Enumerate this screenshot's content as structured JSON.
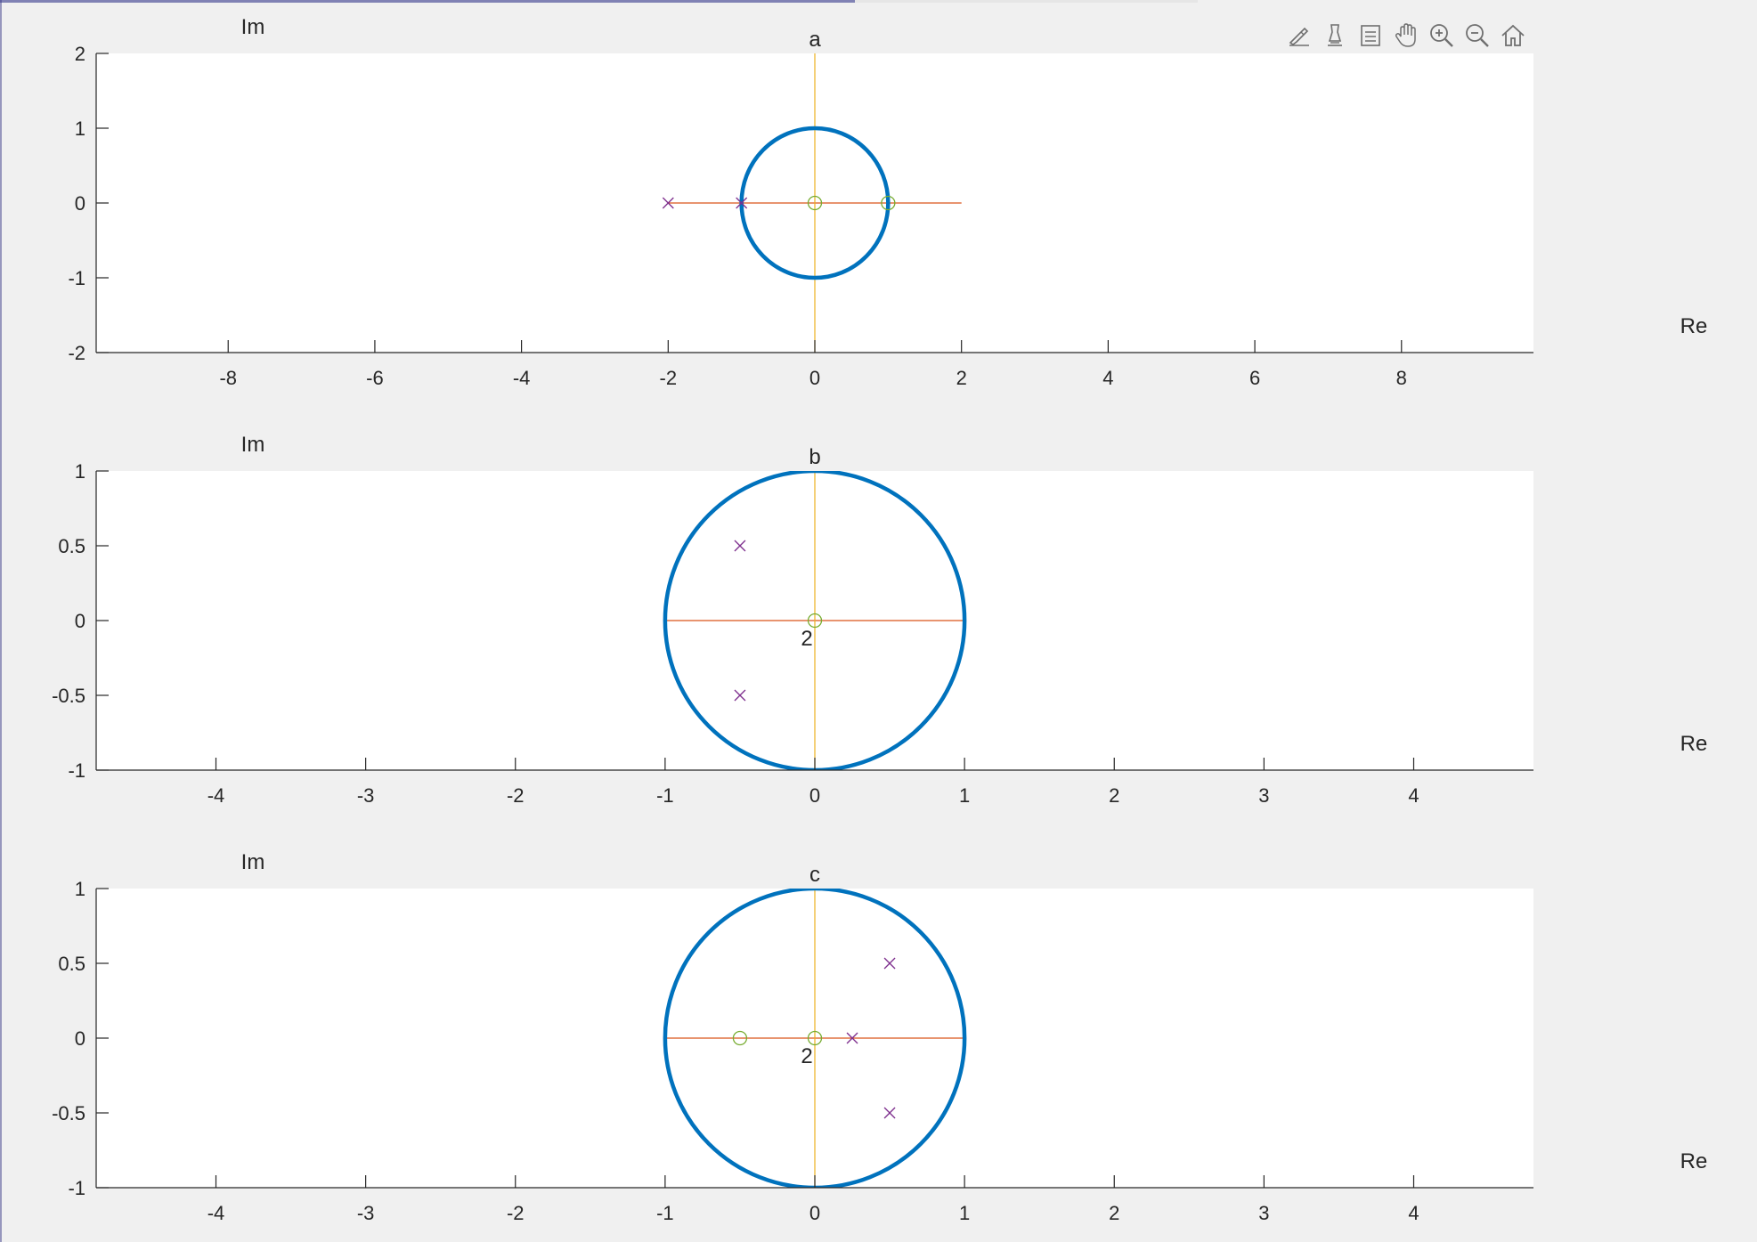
{
  "window": {
    "toolbar": [
      {
        "name": "brush-icon",
        "label": "Brush"
      },
      {
        "name": "data-cursor-icon",
        "label": "Data Tips"
      },
      {
        "name": "legend-icon",
        "label": "Legend"
      },
      {
        "name": "pan-hand-icon",
        "label": "Pan"
      },
      {
        "name": "zoom-in-icon",
        "label": "Zoom In"
      },
      {
        "name": "zoom-out-icon",
        "label": "Zoom Out"
      },
      {
        "name": "home-icon",
        "label": "Restore View"
      }
    ]
  },
  "colors": {
    "unit_circle": "#0072BD",
    "real_axis_line": "#D95319",
    "imag_axis_line": "#EDB120",
    "pole": "#7E2F8E",
    "zero": "#77AC30",
    "axes_bg": "#ffffff",
    "figure_bg": "#f0f0f0",
    "text": "#262626"
  },
  "chart_data": [
    {
      "type": "scatter",
      "title": "a",
      "xlabel": "Re",
      "ylabel": "Im",
      "xlim": [
        -9.8,
        9.8
      ],
      "ylim": [
        -2,
        2
      ],
      "xticks": [
        -8,
        -6,
        -4,
        -2,
        0,
        2,
        4,
        6,
        8
      ],
      "yticks": [
        -2,
        -1,
        0,
        1,
        2
      ],
      "grid": false,
      "unit_circle": {
        "center": [
          0,
          0
        ],
        "radius": 1
      },
      "real_axis_segment": [
        -2,
        2
      ],
      "imag_axis_segment": [
        -2,
        2
      ],
      "poles": [
        [
          -2,
          0
        ],
        [
          -1,
          0
        ]
      ],
      "zeros": [
        [
          0,
          0
        ],
        [
          1,
          0
        ]
      ],
      "multiplicity_labels": []
    },
    {
      "type": "scatter",
      "title": "b",
      "xlabel": "Re",
      "ylabel": "Im",
      "xlim": [
        -4.8,
        4.8
      ],
      "ylim": [
        -1,
        1
      ],
      "xticks": [
        -4,
        -3,
        -2,
        -1,
        0,
        1,
        2,
        3,
        4
      ],
      "yticks": [
        -1,
        -0.5,
        0,
        0.5,
        1
      ],
      "grid": false,
      "unit_circle": {
        "center": [
          0,
          0
        ],
        "radius": 1
      },
      "real_axis_segment": [
        -1,
        1
      ],
      "imag_axis_segment": [
        -1,
        1
      ],
      "poles": [
        [
          -0.5,
          0.5
        ],
        [
          -0.5,
          -0.5
        ]
      ],
      "zeros": [
        [
          0,
          0
        ]
      ],
      "multiplicity_labels": [
        {
          "x": 0,
          "y": 0,
          "text": "2"
        }
      ]
    },
    {
      "type": "scatter",
      "title": "c",
      "xlabel": "Re",
      "ylabel": "Im",
      "xlim": [
        -4.8,
        4.8
      ],
      "ylim": [
        -1,
        1
      ],
      "xticks": [
        -4,
        -3,
        -2,
        -1,
        0,
        1,
        2,
        3,
        4
      ],
      "yticks": [
        -1,
        -0.5,
        0,
        0.5,
        1
      ],
      "grid": false,
      "unit_circle": {
        "center": [
          0,
          0
        ],
        "radius": 1
      },
      "real_axis_segment": [
        -1,
        1
      ],
      "imag_axis_segment": [
        -1,
        1
      ],
      "poles": [
        [
          0.5,
          0.5
        ],
        [
          0.25,
          0
        ],
        [
          0.5,
          -0.5
        ]
      ],
      "zeros": [
        [
          -0.5,
          0
        ],
        [
          0,
          0
        ]
      ],
      "multiplicity_labels": [
        {
          "x": 0,
          "y": 0,
          "text": "2"
        }
      ]
    }
  ]
}
